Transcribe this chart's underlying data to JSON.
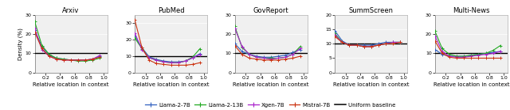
{
  "titles": [
    "Arxiv",
    "PubMed",
    "GovReport",
    "SummScreen",
    "Multi-News"
  ],
  "xlabel": "Relative location in context",
  "ylabel": "Density (%)",
  "models": [
    "Llama-2-7B",
    "Llama-2-13B",
    "Xgen-7B",
    "Mistral-7B"
  ],
  "colors": {
    "Llama-2-7B": "#3060c0",
    "Llama-2-13B": "#22aa22",
    "Xgen-7B": "#aa22cc",
    "Mistral-7B": "#cc3311"
  },
  "x": [
    0.05,
    0.15,
    0.25,
    0.35,
    0.45,
    0.55,
    0.65,
    0.75,
    0.85,
    0.95
  ],
  "data": {
    "Arxiv": {
      "ylim": [
        0,
        30
      ],
      "yticks": [
        0,
        10,
        20,
        30
      ],
      "uniform": 10.0,
      "Llama-2-7B": [
        22.0,
        13.5,
        9.0,
        7.5,
        7.0,
        6.5,
        6.5,
        6.5,
        7.0,
        8.5
      ],
      "Llama-2-13B": [
        26.5,
        14.0,
        9.5,
        7.5,
        7.0,
        6.5,
        6.0,
        6.0,
        6.5,
        7.5
      ],
      "Xgen-7B": [
        23.0,
        12.0,
        8.5,
        7.0,
        6.5,
        6.5,
        6.5,
        6.5,
        7.0,
        9.0
      ],
      "Mistral-7B": [
        21.0,
        12.5,
        8.5,
        7.0,
        6.5,
        6.5,
        6.5,
        6.5,
        7.0,
        8.0
      ]
    },
    "PubMed": {
      "ylim": [
        0,
        35
      ],
      "yticks": [
        0,
        10,
        20,
        30
      ],
      "uniform": 10.0,
      "Llama-2-7B": [
        22.0,
        15.0,
        9.5,
        8.0,
        7.0,
        6.5,
        6.5,
        7.0,
        9.0,
        11.5
      ],
      "Llama-2-13B": [
        21.0,
        14.5,
        9.0,
        7.5,
        6.5,
        6.0,
        6.0,
        7.0,
        9.5,
        14.5
      ],
      "Xgen-7B": [
        24.0,
        14.0,
        9.0,
        7.5,
        6.5,
        6.0,
        6.0,
        7.0,
        9.0,
        11.0
      ],
      "Mistral-7B": [
        32.0,
        15.0,
        7.5,
        5.5,
        5.0,
        4.5,
        4.5,
        4.5,
        5.0,
        6.0
      ]
    },
    "GovReport": {
      "ylim": [
        0,
        30
      ],
      "yticks": [
        0,
        10,
        20,
        30
      ],
      "uniform": 10.0,
      "Llama-2-7B": [
        15.0,
        11.0,
        9.5,
        8.5,
        8.0,
        8.0,
        8.5,
        9.0,
        10.5,
        12.0
      ],
      "Llama-2-13B": [
        24.0,
        13.0,
        9.5,
        8.0,
        7.5,
        7.5,
        7.5,
        8.0,
        9.5,
        13.5
      ],
      "Xgen-7B": [
        23.0,
        13.5,
        9.5,
        8.0,
        7.5,
        7.0,
        7.5,
        8.0,
        9.5,
        12.5
      ],
      "Mistral-7B": [
        14.0,
        9.5,
        7.5,
        7.0,
        6.5,
        6.5,
        6.5,
        7.0,
        7.5,
        8.5
      ]
    },
    "SummScreen": {
      "ylim": [
        0,
        20
      ],
      "yticks": [
        0,
        5,
        10,
        15,
        20
      ],
      "uniform": 10.0,
      "Llama-2-7B": [
        14.5,
        11.0,
        9.5,
        9.5,
        9.5,
        9.5,
        10.0,
        10.5,
        10.5,
        10.5
      ],
      "Llama-2-13B": [
        13.5,
        10.5,
        9.5,
        9.5,
        9.0,
        9.0,
        9.5,
        10.0,
        10.5,
        10.5
      ],
      "Xgen-7B": [
        13.0,
        10.5,
        9.5,
        9.5,
        9.0,
        9.0,
        9.5,
        10.0,
        10.5,
        10.5
      ],
      "Mistral-7B": [
        12.5,
        10.5,
        9.5,
        9.5,
        9.0,
        9.0,
        9.5,
        10.0,
        10.0,
        10.5
      ]
    },
    "Multi-News": {
      "ylim": [
        0,
        30
      ],
      "yticks": [
        0,
        10,
        20,
        30
      ],
      "uniform": 10.0,
      "Llama-2-7B": [
        12.0,
        9.5,
        8.5,
        8.5,
        8.5,
        9.0,
        9.5,
        10.0,
        10.5,
        11.0
      ],
      "Llama-2-13B": [
        21.5,
        12.5,
        9.5,
        8.5,
        8.5,
        9.0,
        9.5,
        10.0,
        11.5,
        14.0
      ],
      "Xgen-7B": [
        19.0,
        11.0,
        8.5,
        8.0,
        8.0,
        8.5,
        9.0,
        9.5,
        10.0,
        11.0
      ],
      "Mistral-7B": [
        16.5,
        10.0,
        8.0,
        7.5,
        7.5,
        7.5,
        7.5,
        7.5,
        7.5,
        7.5
      ]
    }
  },
  "legend_items": [
    {
      "label": "Llama-2-7B",
      "color": "#3060c0",
      "marker": "+"
    },
    {
      "label": "Llama-2-13B",
      "color": "#22aa22",
      "marker": "+"
    },
    {
      "label": "Xgen-7B",
      "color": "#aa22cc",
      "marker": "+"
    },
    {
      "label": "Mistral-7B",
      "color": "#cc3311",
      "marker": "+"
    },
    {
      "label": "Uniform baseline",
      "color": "#000000",
      "marker": null
    }
  ],
  "fig_width": 6.4,
  "fig_height": 1.39,
  "dpi": 100
}
